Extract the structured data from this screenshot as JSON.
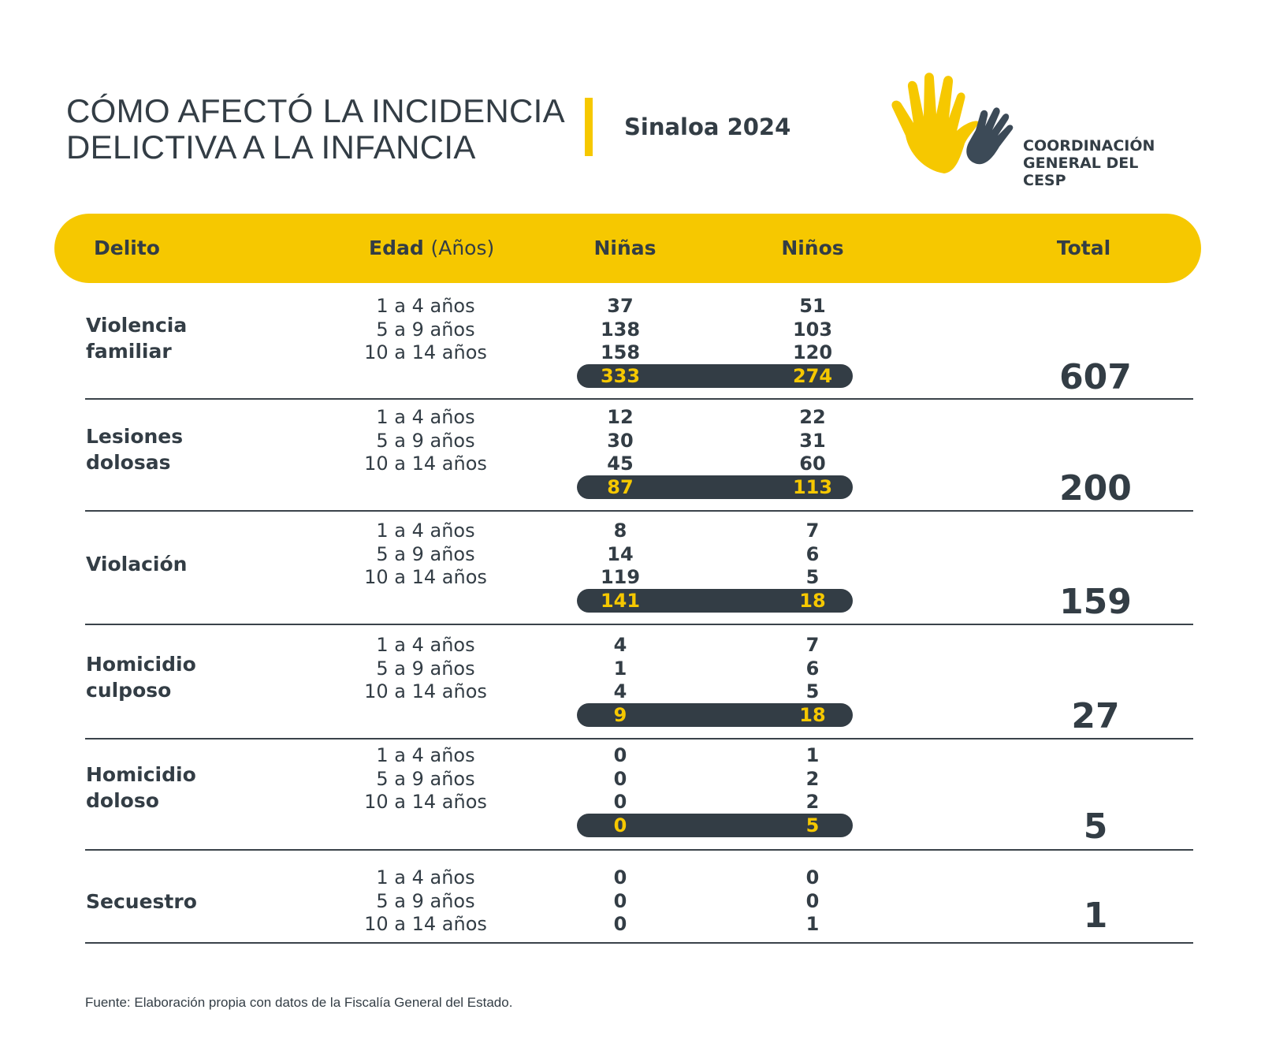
{
  "header": {
    "title_line1": "CÓMO AFECTÓ LA INCIDENCIA",
    "title_line2": "DELICTIVA A LA INFANCIA",
    "subtitle": "Sinaloa 2024",
    "logo_line1": "COORDINACIÓN",
    "logo_line2": "GENERAL DEL CESP"
  },
  "colors": {
    "accent": "#f6c800",
    "dark": "#333d45",
    "logo_blue": "#3c4a57"
  },
  "table": {
    "columns": {
      "delito": "Delito",
      "edad": "Edad",
      "edad_unit": "(Años)",
      "ninas": "Niñas",
      "ninos": "Niños",
      "total": "Total"
    },
    "rows": [
      {
        "crime_line1": "Violencia",
        "crime_line2": "familiar",
        "ages": [
          "1 a 4 años",
          "5 a 9 años",
          "10 a 14 años"
        ],
        "ninas": [
          "37",
          "138",
          "158"
        ],
        "ninos": [
          "51",
          "103",
          "120"
        ],
        "ninas_sum": "333",
        "ninos_sum": "274",
        "total": "607"
      },
      {
        "crime_line1": "Lesiones",
        "crime_line2": "dolosas",
        "ages": [
          "1 a 4 años",
          "5 a 9 años",
          "10 a 14 años"
        ],
        "ninas": [
          "12",
          "30",
          "45"
        ],
        "ninos": [
          "22",
          "31",
          "60"
        ],
        "ninas_sum": "87",
        "ninos_sum": "113",
        "total": "200"
      },
      {
        "crime_line1": "Violación",
        "crime_line2": "",
        "ages": [
          "1 a 4 años",
          "5 a 9 años",
          "10 a 14 años"
        ],
        "ninas": [
          "8",
          "14",
          "119"
        ],
        "ninos": [
          "7",
          "6",
          "5"
        ],
        "ninas_sum": "141",
        "ninos_sum": "18",
        "total": "159"
      },
      {
        "crime_line1": "Homicidio",
        "crime_line2": "culposo",
        "ages": [
          "1 a 4 años",
          "5 a 9 años",
          "10 a 14 años"
        ],
        "ninas": [
          "4",
          "1",
          "4"
        ],
        "ninos": [
          "7",
          "6",
          "5"
        ],
        "ninas_sum": "9",
        "ninos_sum": "18",
        "total": "27"
      },
      {
        "crime_line1": "Homicidio",
        "crime_line2": "doloso",
        "ages": [
          "1 a 4 años",
          "5 a 9 años",
          "10 a 14 años"
        ],
        "ninas": [
          "0",
          "0",
          "0"
        ],
        "ninos": [
          "1",
          "2",
          "2"
        ],
        "ninas_sum": "0",
        "ninos_sum": "5",
        "total": "5"
      },
      {
        "crime_line1": "Secuestro",
        "crime_line2": "",
        "ages": [
          "1 a 4 años",
          "5 a 9 años",
          "10 a 14 años"
        ],
        "ninas": [
          "0",
          "0",
          "0"
        ],
        "ninos": [
          "0",
          "0",
          "1"
        ],
        "total": "1"
      }
    ]
  },
  "footer": {
    "source": "Fuente: Elaboración propia con datos de la Fiscalía General del Estado."
  }
}
